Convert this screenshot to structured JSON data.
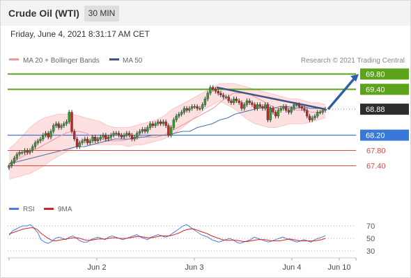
{
  "header": {
    "title": "Crude Oil (WTI)",
    "timeframe": "30 MIN",
    "timestamp": "Friday, June 4, 2021 8:31:17 AM CET"
  },
  "legend": {
    "ma20_label": "MA 20 + Bollinger Bands",
    "ma50_label": "MA 50",
    "credit": "Research © 2021 Trading Central"
  },
  "rsi_legend": {
    "rsi_label": "RSI",
    "ma_label": "9MA"
  },
  "colors": {
    "resistance": "#5aa31a",
    "support": "#3a78d8",
    "secondary_support": "#d84848",
    "current": "#2d2d2d",
    "arrow": "#2f5fa8",
    "trendline": "#3e5487",
    "ma50": "#4a6fa8",
    "ma20": "#f09898",
    "bollinger_fill": "#fde0e0",
    "candle_up": "#2fa02f",
    "candle_down": "#cc2222",
    "rsi_line": "#4a7fd8",
    "rsi_ma": "#d82020"
  },
  "chart_data": {
    "type": "candlestick",
    "x_tick_labels": [
      "Jun 2",
      "Jun 3",
      "Jun 4",
      "Jun 10"
    ],
    "price_levels": [
      {
        "label": "69.80",
        "value": 69.8,
        "kind": "resistance"
      },
      {
        "label": "69.40",
        "value": 69.4,
        "kind": "resistance"
      },
      {
        "label": "68.88",
        "value": 68.88,
        "kind": "current"
      },
      {
        "label": "68.20",
        "value": 68.2,
        "kind": "support"
      },
      {
        "label": "67.80",
        "value": 67.8,
        "kind": "secondary_support"
      },
      {
        "label": "67.40",
        "value": 67.4,
        "kind": "secondary_support"
      }
    ],
    "price_close": [
      67.4,
      67.5,
      67.6,
      67.7,
      67.75,
      67.75,
      67.8,
      67.75,
      67.8,
      67.9,
      68.0,
      68.05,
      68.1,
      68.2,
      68.25,
      68.15,
      68.3,
      68.45,
      68.5,
      68.4,
      68.45,
      68.5,
      68.55,
      68.8,
      68.3,
      68.1,
      67.9,
      68.0,
      68.05,
      68.1,
      68.0,
      68.05,
      68.15,
      68.05,
      68.1,
      68.15,
      68.2,
      68.1,
      68.15,
      68.2,
      68.25,
      68.25,
      68.2,
      68.15,
      68.2,
      68.25,
      68.2,
      68.1,
      68.15,
      68.25,
      68.3,
      68.35,
      68.3,
      68.4,
      68.5,
      68.45,
      68.5,
      68.55,
      68.5,
      68.55,
      68.45,
      68.2,
      68.4,
      68.6,
      68.7,
      68.75,
      68.8,
      68.9,
      68.85,
      68.9,
      68.95,
      68.95,
      68.9,
      68.9,
      69.0,
      69.15,
      69.3,
      69.45,
      69.4,
      69.35,
      69.3,
      69.25,
      69.2,
      69.2,
      69.1,
      69.05,
      69.15,
      69.1,
      69.05,
      68.9,
      69.0,
      69.1,
      69.05,
      69.0,
      68.9,
      69.0,
      68.95,
      68.9,
      69.0,
      68.6,
      68.9,
      68.8,
      68.7,
      68.85,
      68.9,
      68.95,
      68.85,
      68.8,
      68.9,
      69.0,
      69.0,
      68.95,
      68.9,
      68.85,
      68.7,
      68.6,
      68.65,
      68.7,
      68.8,
      68.8,
      68.85,
      68.88
    ],
    "ma50": [
      67.45,
      67.5,
      67.55,
      67.6,
      67.65,
      67.7,
      67.75,
      67.8,
      67.85,
      67.9,
      67.9,
      67.95,
      68.0,
      68.05,
      68.1,
      68.1,
      68.1,
      68.15,
      68.15,
      68.2,
      68.2,
      68.2,
      68.25,
      68.3,
      68.3,
      68.4,
      68.45,
      68.5,
      68.6,
      68.65,
      68.75,
      68.8,
      68.85,
      68.9,
      68.95,
      68.9,
      68.95,
      68.95,
      68.9,
      68.95,
      68.9,
      68.9,
      68.9
    ],
    "ma20": [
      67.45,
      67.55,
      67.65,
      67.75,
      67.85,
      67.95,
      68.05,
      68.15,
      68.25,
      68.3,
      68.3,
      68.25,
      68.15,
      68.1,
      68.05,
      68.05,
      68.05,
      68.1,
      68.1,
      68.15,
      68.15,
      68.15,
      68.2,
      68.3,
      68.4,
      68.5,
      68.6,
      68.7,
      68.8,
      68.9,
      69.05,
      69.2,
      69.3,
      69.3,
      69.3,
      69.2,
      69.1,
      69.0,
      68.9,
      68.9,
      68.9,
      68.85,
      68.85,
      68.8,
      68.8,
      68.85
    ],
    "bollinger_upper": [
      67.85,
      68.0,
      68.2,
      68.4,
      68.55,
      68.65,
      68.7,
      68.75,
      68.75,
      68.75,
      68.7,
      68.65,
      68.6,
      68.55,
      68.45,
      68.4,
      68.4,
      68.4,
      68.45,
      68.5,
      68.55,
      68.6,
      68.7,
      68.85,
      68.95,
      69.05,
      69.15,
      69.25,
      69.35,
      69.45,
      69.55,
      69.55,
      69.55,
      69.5,
      69.45,
      69.4,
      69.35,
      69.3,
      69.25,
      69.2,
      69.15,
      69.15,
      69.1,
      69.05,
      69.05,
      69.0
    ],
    "bollinger_lower": [
      67.05,
      67.1,
      67.15,
      67.2,
      67.3,
      67.4,
      67.55,
      67.65,
      67.75,
      67.85,
      67.95,
      67.95,
      67.95,
      67.95,
      67.95,
      67.95,
      67.95,
      67.9,
      67.95,
      67.95,
      68.0,
      68.05,
      68.1,
      68.2,
      68.3,
      68.45,
      68.6,
      68.75,
      68.9,
      69.0,
      69.1,
      69.0,
      68.9,
      68.75,
      68.6,
      68.5,
      68.45,
      68.4,
      68.4,
      68.45,
      68.5,
      68.5,
      68.5,
      68.55,
      68.6,
      68.65
    ],
    "forecast_arrow": {
      "from": 68.88,
      "to": 69.8
    },
    "trendline": {
      "from": 69.45,
      "to": 68.88
    },
    "rsi": {
      "y_tick_labels": [
        "70",
        "50",
        "30"
      ],
      "levels": [
        70,
        50,
        30
      ],
      "values": [
        55,
        62,
        65,
        68,
        70,
        70,
        72,
        66,
        60,
        48,
        44,
        42,
        45,
        50,
        52,
        50,
        48,
        52,
        54,
        50,
        46,
        44,
        44,
        48,
        50,
        52,
        50,
        48,
        52,
        54,
        52,
        50,
        48,
        50,
        52,
        54,
        56,
        52,
        50,
        48,
        52,
        54,
        56,
        54,
        52,
        54,
        58,
        62,
        66,
        70,
        72,
        68,
        64,
        60,
        56,
        54,
        52,
        48,
        46,
        44,
        46,
        48,
        50,
        48,
        44,
        42,
        44,
        46,
        48,
        52,
        50,
        48,
        46,
        44,
        46,
        48,
        50,
        52,
        50,
        48,
        46,
        44,
        46,
        48,
        46,
        44,
        48,
        50,
        52,
        54
      ],
      "ma9": [
        57,
        59,
        61,
        63,
        65,
        66,
        67,
        67,
        64,
        58,
        54,
        50,
        47,
        46,
        47,
        48,
        49,
        50,
        51,
        51,
        50,
        48,
        47,
        47,
        48,
        49,
        49,
        49,
        50,
        51,
        51,
        50,
        50,
        50,
        51,
        52,
        53,
        53,
        52,
        51,
        51,
        52,
        53,
        54,
        54,
        54,
        55,
        57,
        59,
        62,
        64,
        65,
        65,
        63,
        61,
        59,
        57,
        54,
        52,
        50,
        48,
        47,
        47,
        47,
        47,
        46,
        45,
        45,
        46,
        47,
        48,
        48,
        48,
        47,
        46,
        46,
        46,
        47,
        48,
        49,
        48,
        47,
        46,
        46,
        46,
        46,
        46,
        47,
        48,
        50
      ]
    }
  }
}
